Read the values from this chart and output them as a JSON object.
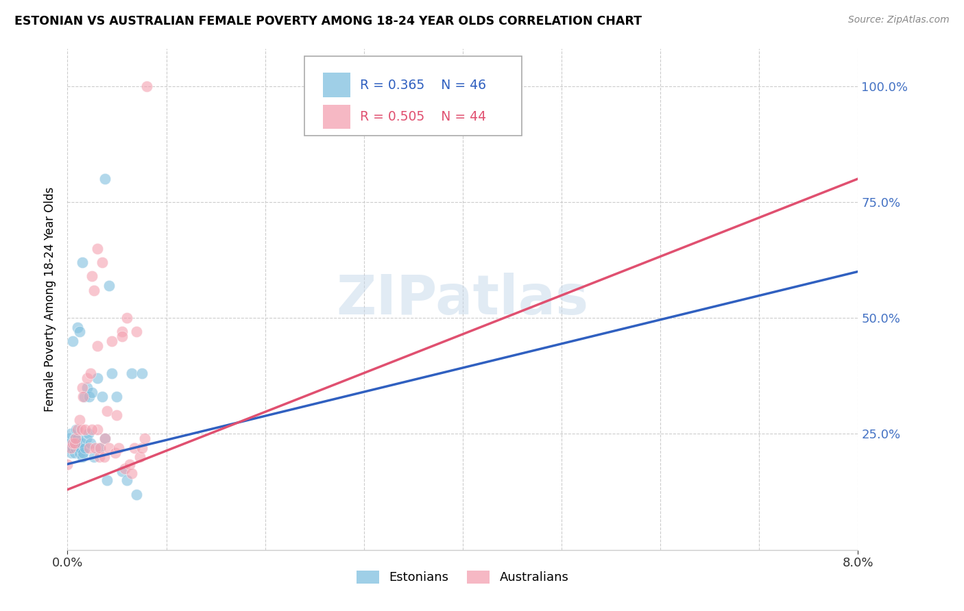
{
  "title": "ESTONIAN VS AUSTRALIAN FEMALE POVERTY AMONG 18-24 YEAR OLDS CORRELATION CHART",
  "source": "Source: ZipAtlas.com",
  "ylabel": "Female Poverty Among 18-24 Year Olds",
  "watermark": "ZIPatlas",
  "blue_color": "#7fbfdf",
  "pink_color": "#f4a0b0",
  "blue_line_color": "#3060c0",
  "pink_line_color": "#e05070",
  "xmin": 0.0,
  "xmax": 0.08,
  "ymin": 0.0,
  "ymax": 1.08,
  "est_R": 0.365,
  "est_N": 46,
  "aus_R": 0.505,
  "aus_N": 44,
  "estonians_x": [
    0.0,
    0.0,
    0.0002,
    0.0003,
    0.0004,
    0.0005,
    0.0005,
    0.0006,
    0.0007,
    0.0007,
    0.0008,
    0.0009,
    0.001,
    0.001,
    0.001,
    0.0011,
    0.0012,
    0.0012,
    0.0013,
    0.0014,
    0.0015,
    0.0015,
    0.0016,
    0.0017,
    0.0018,
    0.0019,
    0.002,
    0.0021,
    0.0022,
    0.0023,
    0.0025,
    0.0027,
    0.003,
    0.0032,
    0.0035,
    0.0038,
    0.004,
    0.0045,
    0.005,
    0.0055,
    0.006,
    0.0065,
    0.007,
    0.0075,
    0.0038,
    0.0042
  ],
  "estonians_y": [
    0.22,
    0.23,
    0.24,
    0.25,
    0.21,
    0.22,
    0.45,
    0.23,
    0.24,
    0.21,
    0.22,
    0.26,
    0.48,
    0.23,
    0.24,
    0.22,
    0.21,
    0.47,
    0.22,
    0.23,
    0.62,
    0.2,
    0.21,
    0.33,
    0.22,
    0.24,
    0.35,
    0.25,
    0.33,
    0.23,
    0.34,
    0.2,
    0.37,
    0.22,
    0.33,
    0.24,
    0.15,
    0.38,
    0.33,
    0.17,
    0.15,
    0.38,
    0.12,
    0.38,
    0.8,
    0.57
  ],
  "australians_x": [
    0.0,
    0.0003,
    0.0005,
    0.0007,
    0.0008,
    0.001,
    0.0012,
    0.0014,
    0.0015,
    0.0016,
    0.0018,
    0.002,
    0.0022,
    0.0023,
    0.0025,
    0.0027,
    0.0028,
    0.003,
    0.003,
    0.0032,
    0.0033,
    0.0035,
    0.0037,
    0.0038,
    0.004,
    0.0042,
    0.0045,
    0.0048,
    0.005,
    0.0052,
    0.0055,
    0.0058,
    0.006,
    0.0063,
    0.0065,
    0.0068,
    0.007,
    0.0073,
    0.0075,
    0.0078,
    0.008,
    0.0025,
    0.003,
    0.0055
  ],
  "australians_y": [
    0.185,
    0.22,
    0.23,
    0.23,
    0.24,
    0.26,
    0.28,
    0.26,
    0.35,
    0.33,
    0.26,
    0.37,
    0.22,
    0.38,
    0.59,
    0.56,
    0.22,
    0.26,
    0.44,
    0.2,
    0.22,
    0.62,
    0.2,
    0.24,
    0.3,
    0.22,
    0.45,
    0.21,
    0.29,
    0.22,
    0.47,
    0.175,
    0.5,
    0.185,
    0.165,
    0.22,
    0.47,
    0.2,
    0.22,
    0.24,
    1.0,
    0.26,
    0.65,
    0.46
  ]
}
